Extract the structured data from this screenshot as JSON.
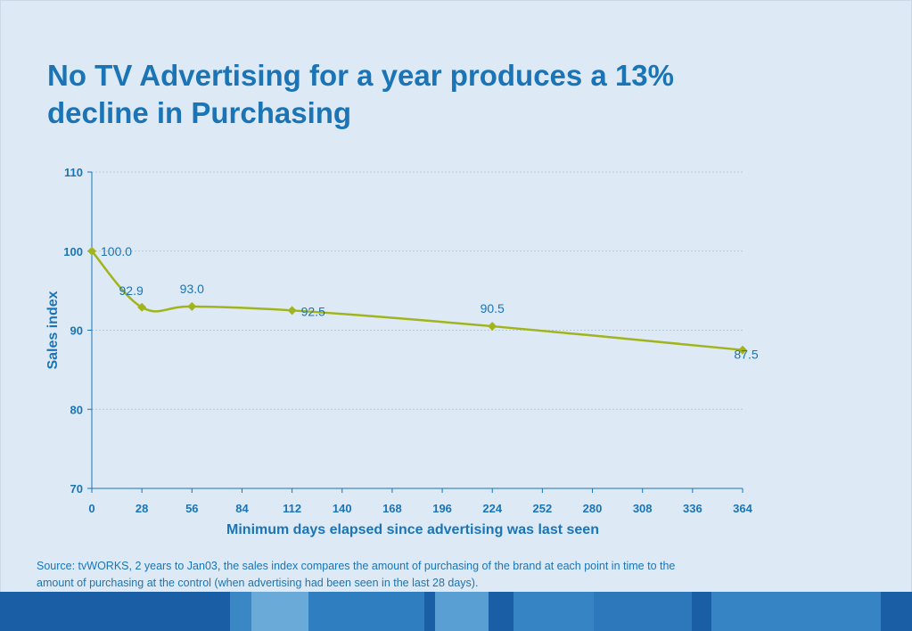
{
  "title": {
    "line1": "No TV Advertising for a year produces a 13%",
    "line2": "decline in Purchasing"
  },
  "source": {
    "line1": "Source: tvWORKS, 2 years to Jan03, the sales index compares the amount of purchasing of the brand at each point in time to the",
    "line2": "amount of purchasing at the control (when advertising had been seen in the last 28 days)."
  },
  "colors": {
    "title": "#1a74b5",
    "line": "#a2b41c",
    "axis": "#1a74b5",
    "gridline": "#b7c9d9",
    "background": "#ddeaf5"
  },
  "chart_data": {
    "type": "line",
    "title": "",
    "xlabel": "Minimum days elapsed since advertising was last seen",
    "ylabel": "Sales index",
    "xlim": [
      0,
      364
    ],
    "ylim": [
      70,
      110
    ],
    "xticks": [
      0,
      28,
      56,
      84,
      112,
      140,
      168,
      196,
      224,
      252,
      280,
      308,
      336,
      364
    ],
    "yticks": [
      70,
      80,
      90,
      100,
      110
    ],
    "grid": "horizontal dotted",
    "legend": "none",
    "series": [
      {
        "x": [
          0,
          28,
          56,
          112,
          224,
          364
        ],
        "values": [
          100.0,
          92.9,
          93.0,
          92.5,
          90.5,
          87.5
        ],
        "labels": [
          "100.0",
          "92.9",
          "93.0",
          "92.5",
          "90.5",
          "87.5"
        ],
        "marker": "diamond",
        "smooth": true
      }
    ]
  },
  "footer_stripes": [
    "#1a5fa6",
    "#3b86c4",
    "#6aaad8",
    "#2f7fc0",
    "#1a5fa6",
    "#5a9fd3",
    "#1a5fa6",
    "#3684c4",
    "#2c78bb",
    "#1a5fa6",
    "#3684c4",
    "#1a5fa6"
  ]
}
